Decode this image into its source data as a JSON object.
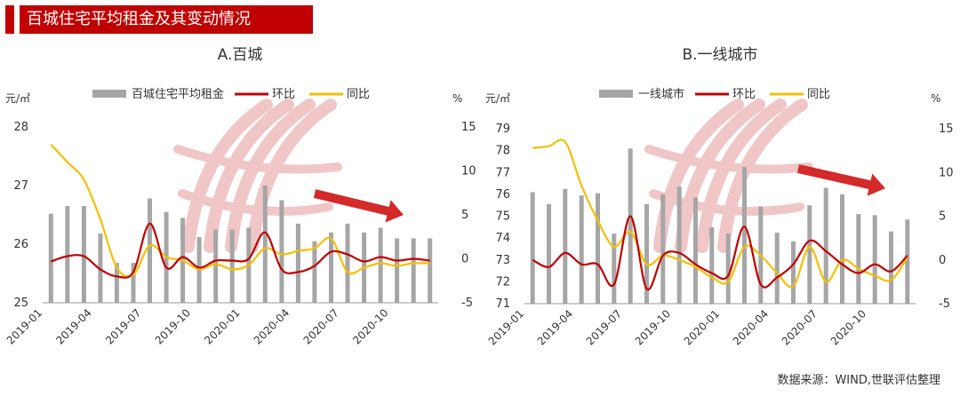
{
  "banner": {
    "title": "百城住宅平均租金及其变动情况"
  },
  "source": "数据来源：WIND,世联评估整理",
  "colors": {
    "bar": "#a6a6a6",
    "mom": "#c00000",
    "yoy": "#f5c000",
    "banner": "#c00000",
    "arrow": "#d42a2a"
  },
  "chart_data": [
    {
      "type": "bar",
      "title": "A.百城",
      "left_unit": "元/㎡",
      "right_unit": "%",
      "left_ticks": [
        "28",
        "27",
        "26",
        "25"
      ],
      "right_ticks": [
        "15",
        "10",
        "5",
        "0",
        "-5"
      ],
      "ylim_left": [
        25,
        28
      ],
      "ylim_right": [
        -5,
        15
      ],
      "x_tick_labels": [
        "2019-01",
        "2019-04",
        "2019-07",
        "2019-10",
        "2020-01",
        "2020-04",
        "2020-07",
        "2020-10"
      ],
      "x": [
        "2019-01",
        "2019-02",
        "2019-03",
        "2019-04",
        "2019-05",
        "2019-06",
        "2019-07",
        "2019-08",
        "2019-09",
        "2019-10",
        "2019-11",
        "2019-12",
        "2020-01",
        "2020-02",
        "2020-03",
        "2020-04",
        "2020-05",
        "2020-06",
        "2020-07",
        "2020-08",
        "2020-09",
        "2020-10",
        "2020-11",
        "2020-12"
      ],
      "legend": [
        "百城住宅平均租金",
        "环比",
        "同比"
      ],
      "series": [
        {
          "name": "百城住宅平均租金",
          "axis": "left",
          "kind": "bar",
          "values": [
            26.52,
            26.65,
            26.65,
            26.18,
            25.68,
            25.68,
            26.78,
            26.55,
            26.45,
            26.12,
            26.25,
            26.25,
            26.28,
            27.0,
            26.75,
            26.35,
            26.05,
            26.2,
            26.35,
            26.2,
            26.28,
            26.1,
            26.1,
            26.1
          ]
        },
        {
          "name": "环比",
          "axis": "right",
          "kind": "line",
          "values": [
            -0.3,
            0.3,
            0.3,
            -1.2,
            -2.0,
            -1.5,
            4.0,
            -1.0,
            0.2,
            -1.0,
            -0.2,
            -0.2,
            0.0,
            3.0,
            -1.2,
            -1.5,
            -0.8,
            0.8,
            0.5,
            -0.3,
            0.2,
            -0.2,
            0.0,
            -0.2
          ]
        },
        {
          "name": "同比",
          "axis": "right",
          "kind": "line",
          "values": [
            13.0,
            11.0,
            9.0,
            4.5,
            -1.0,
            -1.8,
            1.5,
            0.2,
            -0.2,
            -1.2,
            -0.6,
            -1.2,
            -0.7,
            1.2,
            0.5,
            0.9,
            1.2,
            2.3,
            -1.5,
            -1.0,
            -0.5,
            -0.8,
            -0.5,
            -0.5
          ]
        }
      ]
    },
    {
      "type": "bar",
      "title": "B.一线城市",
      "left_unit": "元/㎡",
      "right_unit": "%",
      "left_ticks": [
        "79",
        "78",
        "77",
        "76",
        "75",
        "74",
        "73",
        "72",
        "71"
      ],
      "right_ticks": [
        "15",
        "10",
        "5",
        "0",
        "-5"
      ],
      "ylim_left": [
        71,
        79
      ],
      "ylim_right": [
        -5,
        15
      ],
      "x_tick_labels": [
        "2019-01",
        "2019-04",
        "2019-07",
        "2019-10",
        "2020-01",
        "2020-04",
        "2020-07",
        "2020-10"
      ],
      "x": [
        "2019-01",
        "2019-02",
        "2019-03",
        "2019-04",
        "2019-05",
        "2019-06",
        "2019-07",
        "2019-08",
        "2019-09",
        "2019-10",
        "2019-11",
        "2019-12",
        "2020-01",
        "2020-02",
        "2020-03",
        "2020-04",
        "2020-05",
        "2020-06",
        "2020-07",
        "2020-08",
        "2020-09",
        "2020-10",
        "2020-11",
        "2020-12"
      ],
      "legend": [
        "一线城市",
        "环比",
        "同比"
      ],
      "series": [
        {
          "name": "一线城市",
          "axis": "left",
          "kind": "bar",
          "values": [
            76.1,
            75.55,
            76.25,
            75.95,
            76.05,
            74.2,
            78.1,
            75.55,
            76.0,
            76.35,
            75.85,
            74.5,
            74.2,
            77.25,
            75.45,
            74.25,
            73.85,
            75.5,
            76.3,
            76.0,
            75.1,
            75.05,
            74.3,
            74.85
          ]
        },
        {
          "name": "环比",
          "axis": "right",
          "kind": "line",
          "values": [
            0.0,
            -0.8,
            0.8,
            -0.5,
            -0.5,
            -2.8,
            5.0,
            -3.3,
            0.5,
            0.8,
            -0.5,
            -1.5,
            -1.8,
            3.8,
            -2.8,
            -2.0,
            -0.5,
            2.2,
            1.0,
            -0.5,
            -1.5,
            -0.5,
            -1.3,
            0.5
          ]
        },
        {
          "name": "同比",
          "axis": "right",
          "kind": "line",
          "values": [
            12.8,
            13.0,
            13.5,
            8.5,
            4.5,
            1.5,
            3.2,
            -0.5,
            0.5,
            0.0,
            -0.8,
            -2.0,
            -2.5,
            1.5,
            0.5,
            -1.5,
            -3.0,
            1.5,
            -2.5,
            0.0,
            -1.0,
            -1.8,
            -2.3,
            0.3
          ]
        }
      ]
    }
  ]
}
